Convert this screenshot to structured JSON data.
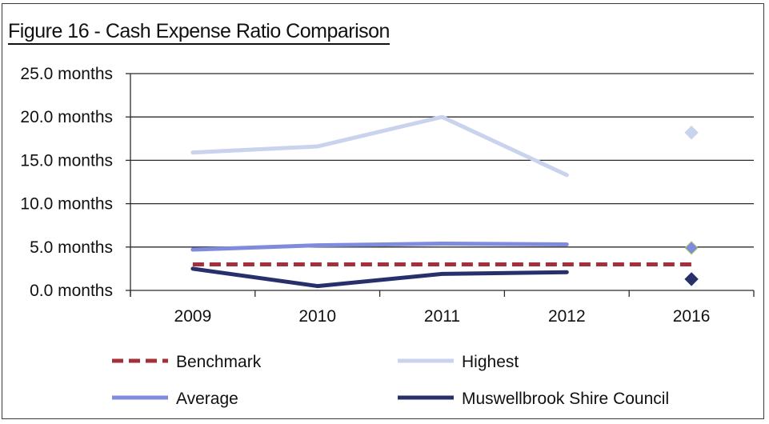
{
  "chart_data": {
    "type": "line",
    "title": "Figure 16 - Cash Expense Ratio Comparison",
    "categories": [
      "2009",
      "2010",
      "2011",
      "2012",
      "2016"
    ],
    "y_tick_labels": [
      "25.0 months",
      "20.0 months",
      "15.0 months",
      "10.0 months",
      "5.0 months",
      "0.0 months"
    ],
    "ylim": [
      0,
      25
    ],
    "grid": true,
    "legend_position": "bottom",
    "series": [
      {
        "name": "Benchmark",
        "values": [
          3.0,
          3.0,
          3.0,
          3.0,
          3.0
        ],
        "color": "#a3303a",
        "style": "dashed",
        "marker_2016": false
      },
      {
        "name": "Highest",
        "values": [
          15.9,
          16.6,
          20.0,
          13.3,
          18.2
        ],
        "color": "#c9d3ee",
        "style": "solid",
        "marker_2016": true
      },
      {
        "name": "Average",
        "values": [
          4.7,
          5.2,
          5.4,
          5.3,
          4.9
        ],
        "color": "#7f8bdc",
        "style": "solid",
        "marker_2016": true
      },
      {
        "name": "Muswellbrook Shire Council",
        "values": [
          2.5,
          0.5,
          1.9,
          2.1,
          1.3
        ],
        "color": "#27306b",
        "style": "solid",
        "marker_2016": true
      }
    ]
  }
}
